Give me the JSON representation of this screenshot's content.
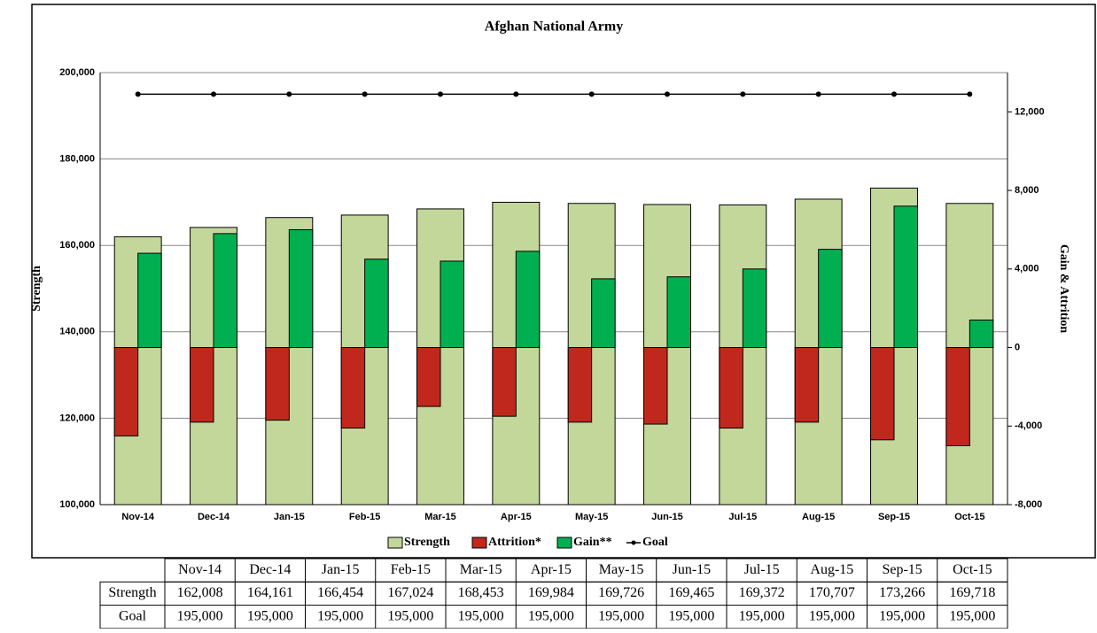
{
  "chart_data": {
    "type": "bar",
    "title": "Afghan National Army",
    "ylabel": "Strength",
    "y2label": "Gain & Attrition",
    "categories": [
      "Nov-14",
      "Dec-14",
      "Jan-15",
      "Feb-15",
      "Mar-15",
      "Apr-15",
      "May-15",
      "Jun-15",
      "Jul-15",
      "Aug-15",
      "Sep-15",
      "Oct-15"
    ],
    "ylim": [
      100000,
      200000
    ],
    "yticks": [
      {
        "value": 100000,
        "label": "100,000"
      },
      {
        "value": 120000,
        "label": "120,000"
      },
      {
        "value": 140000,
        "label": "140,000"
      },
      {
        "value": 160000,
        "label": "160,000"
      },
      {
        "value": 180000,
        "label": "180,000"
      },
      {
        "value": 200000,
        "label": "200,000"
      }
    ],
    "y2lim": [
      -8000,
      14000
    ],
    "y2ticks": [
      {
        "value": -8000,
        "label": "-8,000"
      },
      {
        "value": -4000,
        "label": "-4,000"
      },
      0,
      {
        "value": 4000,
        "label": "4,000"
      },
      {
        "value": 8000,
        "label": "8,000"
      },
      {
        "value": 12000,
        "label": "12,000"
      }
    ],
    "grid": true,
    "legend": "bottom",
    "series": [
      {
        "name": "Strength",
        "color": "#c4d79b",
        "values": [
          162008,
          164161,
          166454,
          167024,
          168453,
          169984,
          169726,
          169465,
          169372,
          170707,
          173266,
          169718
        ],
        "value_labels": [
          "162,008",
          "164,161",
          "166,454",
          "167,024",
          "168,453",
          "169,984",
          "169,726",
          "169,465",
          "169,372",
          "170,707",
          "173,266",
          "169,718"
        ]
      },
      {
        "name": "Attrition*",
        "color": "#c0281e",
        "axis": "y2",
        "values": [
          -4500,
          -3800,
          -3700,
          -4100,
          -3000,
          -3500,
          -3800,
          -3900,
          -4100,
          -3800,
          -4700,
          -5000
        ]
      },
      {
        "name": "Gain**",
        "color": "#00b050",
        "axis": "y2",
        "values": [
          4800,
          5800,
          6000,
          4500,
          4400,
          4900,
          3500,
          3600,
          4000,
          5000,
          7200,
          1400
        ]
      },
      {
        "name": "Goal",
        "color": "#000000",
        "values": [
          195000,
          195000,
          195000,
          195000,
          195000,
          195000,
          195000,
          195000,
          195000,
          195000,
          195000,
          195000
        ],
        "value_labels": [
          "195,000",
          "195,000",
          "195,000",
          "195,000",
          "195,000",
          "195,000",
          "195,000",
          "195,000",
          "195,000",
          "195,000",
          "195,000",
          "195,000"
        ]
      }
    ]
  }
}
